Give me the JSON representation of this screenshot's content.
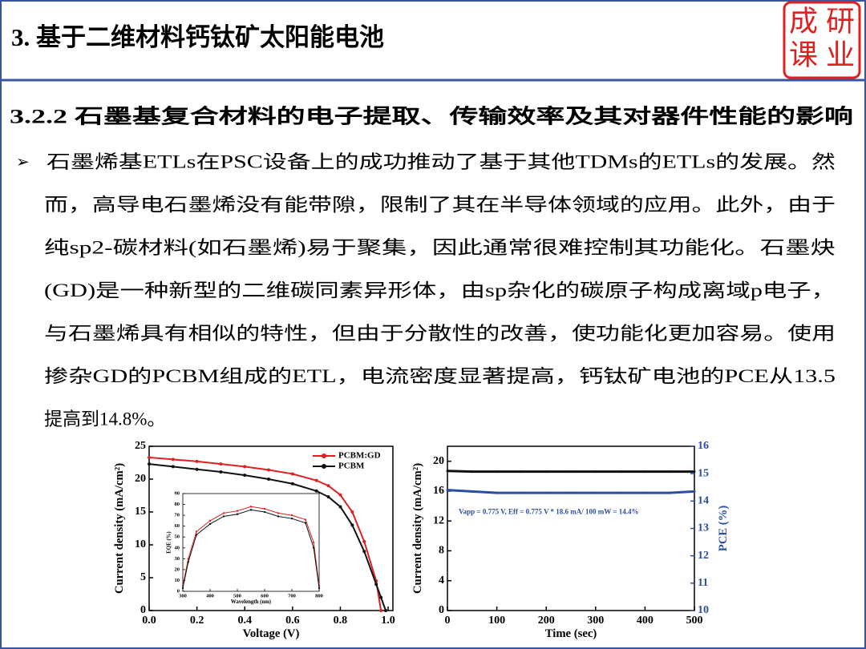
{
  "header": {
    "title": "3. 基于二维材料钙钛矿太阳能电池"
  },
  "logo": {
    "chars": [
      "成",
      "研",
      "课",
      "业"
    ]
  },
  "section": {
    "title": "3.2.2 石墨基复合材料的电子提取、传输效率及其对器件性能的影响"
  },
  "body": {
    "bullet": "➢",
    "lines": [
      "石墨烯基ETLs在PSC设备上的成功推动了基于其他TDMs的ETLs的发展。然",
      "而，高导电石墨烯没有能带隙，限制了其在半导体领域的应用。此外，由于",
      "纯sp2-碳材料(如石墨烯)易于聚集，因此通常很难控制其功能化。石墨炔",
      "(GD)是一种新型的二维碳同素异形体，由sp杂化的碳原子构成离域p电子，",
      "与石墨烯具有相似的特性，但由于分散性的改善，使功能化更加容易。使用",
      "掺杂GD的PCBM组成的ETL，电流密度显著提高，钙钛矿电池的PCE从13.5",
      "提高到14.8%。"
    ]
  },
  "chart_data": [
    {
      "type": "line",
      "xlabel": "Voltage (V)",
      "ylabel": "Current density (mA/cm²)",
      "x": [
        0,
        0.1,
        0.2,
        0.3,
        0.4,
        0.5,
        0.6,
        0.7,
        0.75,
        0.8,
        0.85,
        0.9,
        0.95,
        0.97,
        0.99
      ],
      "series": [
        {
          "name": "PCBM:GD",
          "color": "#e02020",
          "values": [
            23.3,
            23.0,
            22.7,
            22.3,
            21.9,
            21.4,
            20.8,
            19.8,
            19.0,
            17.6,
            15.0,
            10.5,
            4.5,
            0,
            null
          ]
        },
        {
          "name": "PCBM",
          "color": "#111111",
          "values": [
            22.3,
            21.9,
            21.5,
            21.1,
            20.6,
            20.0,
            19.3,
            18.2,
            17.3,
            15.8,
            13.0,
            9.0,
            4.0,
            2.0,
            0
          ]
        }
      ],
      "xlim": [
        0,
        1.02
      ],
      "ylim": [
        0,
        25
      ],
      "xticks": [
        {
          "value": 0,
          "label": "0.0"
        },
        {
          "value": 0.2,
          "label": "0.2"
        },
        {
          "value": 0.4,
          "label": "0.4"
        },
        {
          "value": 0.6,
          "label": "0.6"
        },
        {
          "value": 0.8,
          "label": "0.8"
        },
        {
          "value": 1,
          "label": "1.0"
        }
      ],
      "yticks": [
        0,
        5,
        10,
        15,
        20,
        25
      ],
      "legend": "upper right"
    },
    {
      "type": "line",
      "xlabel": "Time (sec)",
      "ylabel": "Current density (mA/cm²)",
      "y2label": "PCE (%)",
      "y2color": "#2b4ea2",
      "annotation": "Vapp = 0.775 V, Eff = 0.775 V * 18.6 mA/ 100 mW = 14.4%",
      "x": [
        0,
        50,
        100,
        150,
        200,
        250,
        300,
        350,
        400,
        450,
        500
      ],
      "series": [
        {
          "color": "#111111",
          "values": [
            18.7,
            18.6,
            18.6,
            18.6,
            18.6,
            18.6,
            18.6,
            18.6,
            18.6,
            18.6,
            18.6
          ]
        },
        {
          "color": "#2b4ea2",
          "axis": "y2",
          "values": [
            14.4,
            14.35,
            14.3,
            14.3,
            14.3,
            14.3,
            14.3,
            14.3,
            14.3,
            14.3,
            14.35
          ]
        }
      ],
      "xlim": [
        0,
        500
      ],
      "ylim": [
        0,
        22
      ],
      "y2lim": [
        10,
        16
      ],
      "xticks": [
        0,
        100,
        200,
        300,
        400,
        500
      ],
      "yticks": [
        0,
        4,
        8,
        12,
        16,
        20
      ],
      "y2ticks": [
        10,
        11,
        12,
        13,
        14,
        15,
        16
      ]
    },
    {
      "type": "line",
      "xlabel": "Wavelength (nm)",
      "ylabel": "EQE (%)",
      "x": [
        300,
        320,
        350,
        400,
        450,
        500,
        550,
        600,
        650,
        700,
        750,
        780,
        800
      ],
      "series": [
        {
          "color": "#e02020",
          "values": [
            5,
            30,
            55,
            65,
            72,
            74,
            78,
            76,
            72,
            70,
            66,
            45,
            5
          ]
        },
        {
          "color": "#111111",
          "values": [
            3,
            27,
            52,
            62,
            69,
            71,
            75,
            73,
            69,
            67,
            63,
            40,
            3
          ]
        }
      ],
      "xlim": [
        300,
        800
      ],
      "ylim": [
        0,
        90
      ],
      "xticks": [
        300,
        400,
        500,
        600,
        700,
        800
      ],
      "yticks": [
        0,
        10,
        20,
        30,
        40,
        50,
        60,
        70,
        80,
        90
      ]
    }
  ]
}
